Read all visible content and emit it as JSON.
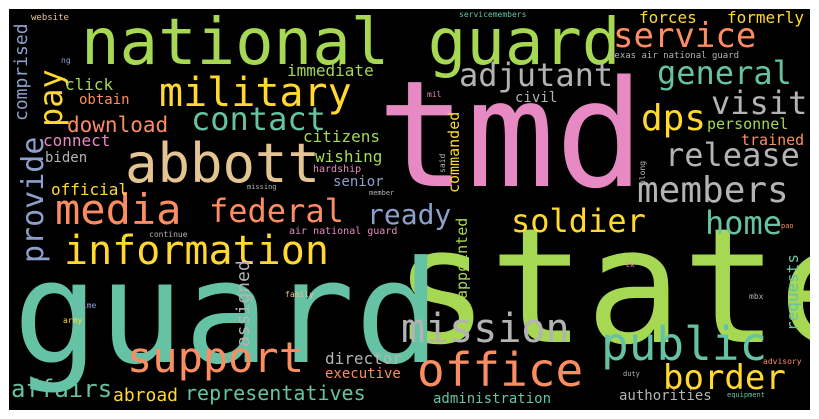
{
  "colors": {
    "background": "#000000",
    "frame": "#ffffff",
    "green": "#a6d854",
    "teal": "#66c2a5",
    "pink": "#e78ac3",
    "orange": "#fc8d62",
    "yellow": "#ffd92f",
    "tan": "#e5c494",
    "gray": "#b3b3b3",
    "blue": "#8da0cb"
  },
  "words": {
    "tmd": "tmd",
    "state": "state",
    "guard": "guard",
    "national_guard": "national guard",
    "abbott": "abbott",
    "military": "military",
    "information": "information",
    "media": "media",
    "office": "office",
    "support": "support",
    "public": "public",
    "mission": "mission",
    "service": "service",
    "members": "members",
    "release": "release",
    "federal": "federal",
    "border": "border",
    "soldier": "soldier",
    "general": "general",
    "visit": "visit",
    "adjutant": "adjutant",
    "contact": "contact",
    "dps": "dps",
    "ready": "ready",
    "home": "home",
    "pay": "pay",
    "affairs": "affairs",
    "provide": "provide",
    "download": "download",
    "forces": "forces",
    "formerly": "formerly",
    "representatives": "representatives",
    "administration": "administration",
    "authorities": "authorities",
    "abroad": "abroad",
    "executive": "executive",
    "director": "director",
    "citizens": "citizens",
    "wishing": "wishing",
    "senior": "senior",
    "personnel": "personnel",
    "trained": "trained",
    "immediate": "immediate",
    "civil": "civil",
    "click": "click",
    "obtain": "obtain",
    "connect": "connect",
    "biden": "biden",
    "official": "official",
    "comprised": "comprised",
    "assigned": "assigned",
    "appointed": "appointed",
    "commanded": "commanded",
    "requests": "requests",
    "air_national_guard": "air national guard",
    "texas_air_national_guard": "texas air national guard",
    "website": "website",
    "servicemembers": "servicemembers",
    "hardship": "hardship",
    "missing": "missing",
    "member": "member",
    "continue": "continue",
    "family": "family",
    "army": "army",
    "time": "time",
    "duty": "duty",
    "equipment": "equipment",
    "advisory": "advisory",
    "mbx": "mbx",
    "tx": "tx",
    "pao": "pao",
    "along": "along",
    "said": "said",
    "mil": "mil",
    "ng": "ng"
  }
}
